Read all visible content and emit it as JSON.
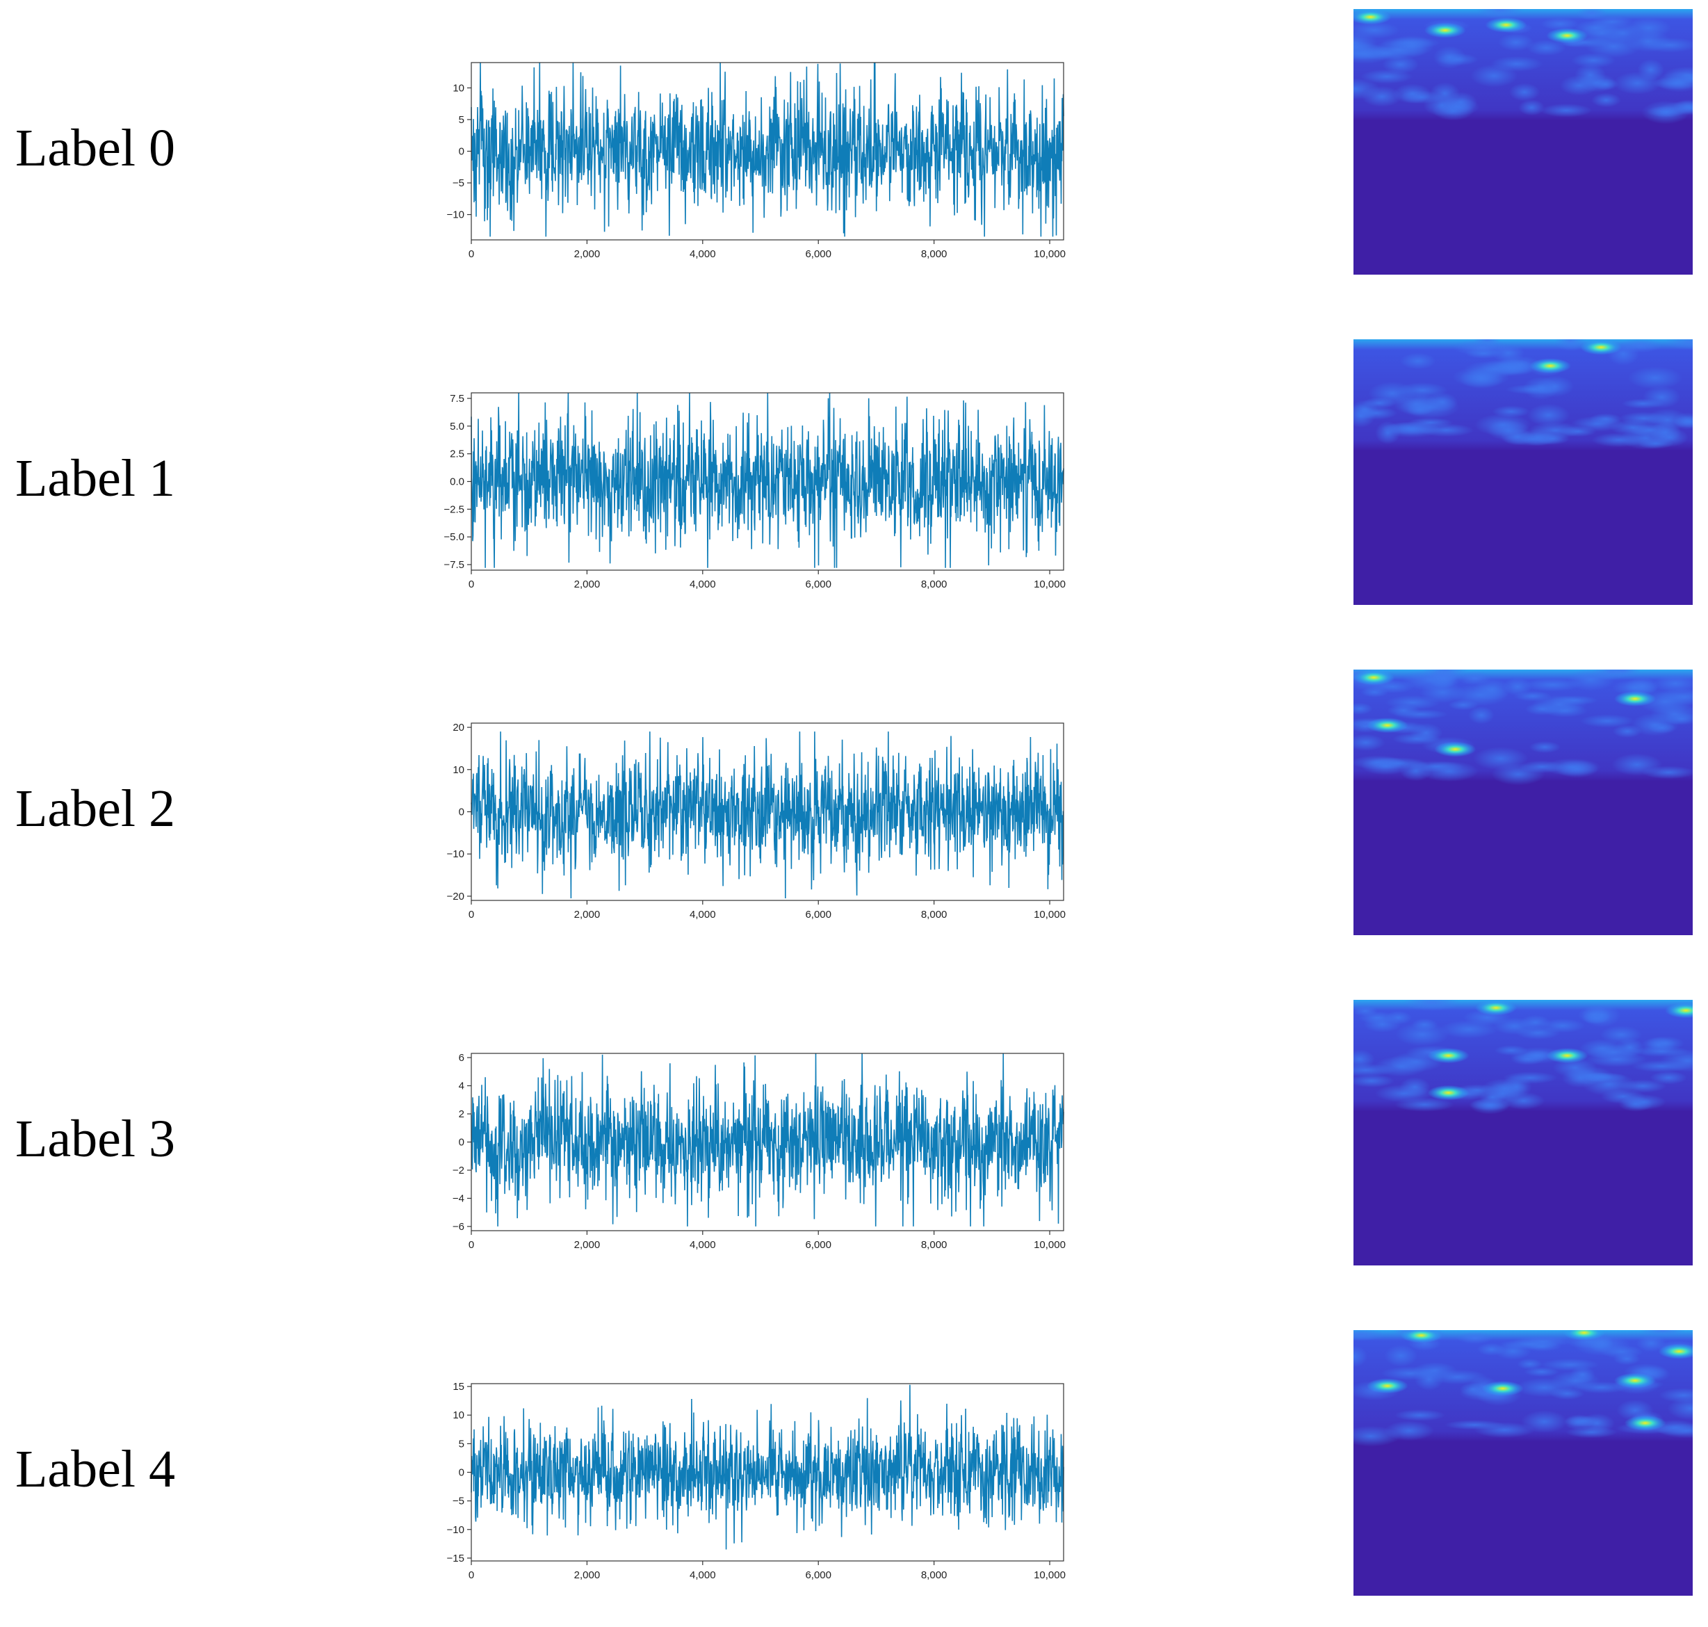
{
  "colors": {
    "signal": "#0f7db8",
    "spectrogram_base": "#3f1fa6",
    "spectrogram_mid": "#3d55e3",
    "spectrogram_high": "#2ba6f0",
    "spectrogram_peak": "#f6f01a"
  },
  "chart_data": [
    {
      "type": "line",
      "row_label": "Label 0",
      "xlim": [
        0,
        10240
      ],
      "ylim": [
        -14,
        14
      ],
      "xticks": [
        0,
        2000,
        4000,
        6000,
        8000,
        10000
      ],
      "xtick_labels": [
        "0",
        "2,000",
        "4,000",
        "6,000",
        "8,000",
        "10,000"
      ],
      "yticks": [
        10,
        5,
        0,
        -5,
        -10
      ],
      "ytick_labels": [
        "10",
        "5",
        "0",
        "−5",
        "−10"
      ],
      "signal_amplitude": 10,
      "signal_extrema": {
        "max": 14,
        "min": -13.5
      },
      "grid": false,
      "spectrogram_hotspots": [
        [
          0.05,
          0.03
        ],
        [
          0.63,
          0.1
        ],
        [
          0.45,
          0.06
        ],
        [
          0.27,
          0.08
        ]
      ]
    },
    {
      "type": "line",
      "row_label": "Label 1",
      "xlim": [
        0,
        10240
      ],
      "ylim": [
        -8,
        8
      ],
      "xticks": [
        0,
        2000,
        4000,
        6000,
        8000,
        10000
      ],
      "xtick_labels": [
        "0",
        "2,000",
        "4,000",
        "6,000",
        "8,000",
        "10,000"
      ],
      "yticks": [
        7.5,
        5.0,
        2.5,
        0.0,
        -2.5,
        -5.0,
        -7.5
      ],
      "ytick_labels": [
        "7.5",
        "5.0",
        "2.5",
        "0.0",
        "−2.5",
        "−5.0",
        "−7.5"
      ],
      "signal_amplitude": 6,
      "signal_extrema": {
        "max": 8,
        "min": -7.8
      },
      "grid": false,
      "spectrogram_hotspots": [
        [
          0.73,
          0.03
        ],
        [
          0.58,
          0.1
        ]
      ]
    },
    {
      "type": "line",
      "row_label": "Label 2",
      "xlim": [
        0,
        10240
      ],
      "ylim": [
        -21,
        21
      ],
      "xticks": [
        0,
        2000,
        4000,
        6000,
        8000,
        10000
      ],
      "xtick_labels": [
        "0",
        "2,000",
        "4,000",
        "6,000",
        "8,000",
        "10,000"
      ],
      "yticks": [
        20,
        10,
        0,
        -10,
        -20
      ],
      "ytick_labels": [
        "20",
        "10",
        "0",
        "−10",
        "−20"
      ],
      "signal_amplitude": 14,
      "signal_extrema": {
        "max": 19,
        "min": -20.5
      },
      "grid": false,
      "spectrogram_hotspots": [
        [
          0.06,
          0.03
        ],
        [
          0.83,
          0.11
        ],
        [
          0.1,
          0.21
        ],
        [
          0.3,
          0.3
        ]
      ]
    },
    {
      "type": "line",
      "row_label": "Label 3",
      "xlim": [
        0,
        10240
      ],
      "ylim": [
        -6.3,
        6.3
      ],
      "xticks": [
        0,
        2000,
        4000,
        6000,
        8000,
        10000
      ],
      "xtick_labels": [
        "0",
        "2,000",
        "4,000",
        "6,000",
        "8,000",
        "10,000"
      ],
      "yticks": [
        6,
        4,
        2,
        0,
        -2,
        -4,
        -6
      ],
      "ytick_labels": [
        "6",
        "4",
        "2",
        "0",
        "−2",
        "−4",
        "−6"
      ],
      "signal_amplitude": 4.5,
      "signal_extrema": {
        "max": 6.3,
        "min": -6
      },
      "grid": false,
      "spectrogram_hotspots": [
        [
          0.42,
          0.03
        ],
        [
          0.98,
          0.04
        ],
        [
          0.28,
          0.21
        ],
        [
          0.63,
          0.21
        ],
        [
          0.28,
          0.35
        ]
      ]
    },
    {
      "type": "line",
      "row_label": "Label 4",
      "xlim": [
        0,
        10240
      ],
      "ylim": [
        -15.5,
        15.5
      ],
      "xticks": [
        0,
        2000,
        4000,
        6000,
        8000,
        10000
      ],
      "xtick_labels": [
        "0",
        "2,000",
        "4,000",
        "6,000",
        "8,000",
        "10,000"
      ],
      "yticks": [
        15,
        10,
        5,
        0,
        -5,
        -10,
        -15
      ],
      "ytick_labels": [
        "15",
        "10",
        "5",
        "0",
        "−5",
        "−10",
        "−15"
      ],
      "signal_amplitude": 9,
      "signal_extrema": {
        "max": 15.3,
        "min": -13.5
      },
      "grid": false,
      "spectrogram_hotspots": [
        [
          0.2,
          0.02
        ],
        [
          0.68,
          0.01
        ],
        [
          0.96,
          0.08
        ],
        [
          0.83,
          0.19
        ],
        [
          0.44,
          0.22
        ],
        [
          0.1,
          0.21
        ],
        [
          0.86,
          0.35
        ]
      ]
    }
  ]
}
